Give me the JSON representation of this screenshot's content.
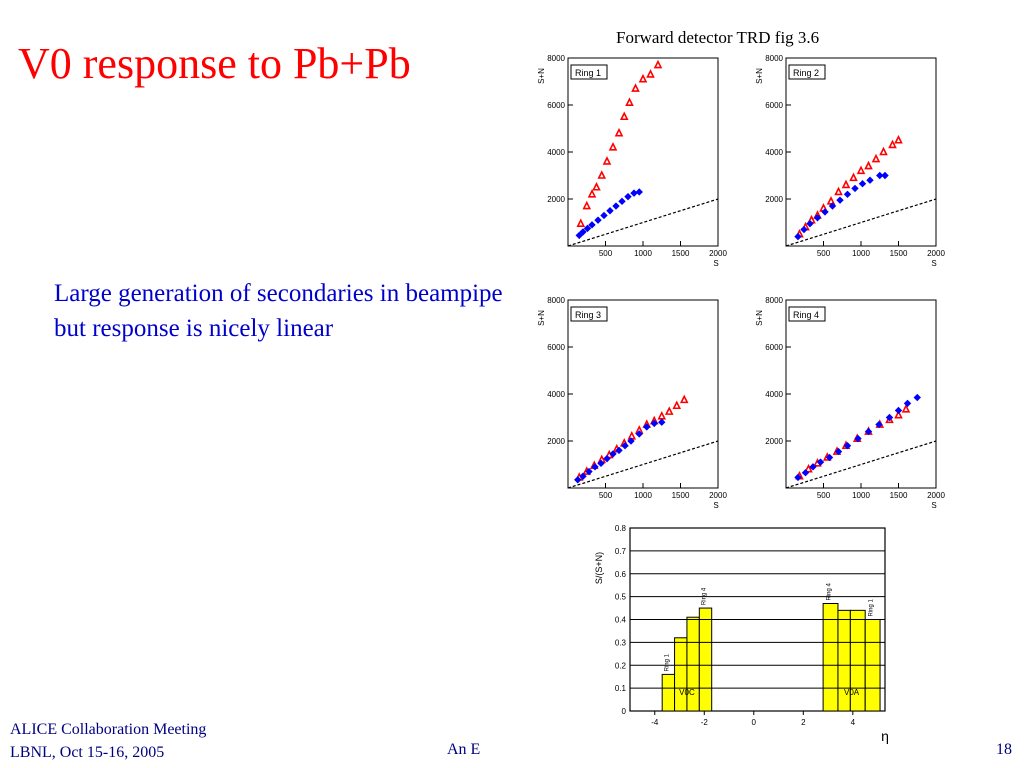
{
  "slide": {
    "title": "V0 response to Pb+Pb",
    "figure_caption": "Forward detector TRD fig 3.6",
    "body_text": "Large generation of secondaries in beampipe but response is nicely linear",
    "footer_line1": "ALICE Collaboration Meeting",
    "footer_line2": "LBNL, Oct 15-16, 2005",
    "footer_middle": "An E",
    "page_number": "18",
    "colors": {
      "title": "#ff0000",
      "body": "#0000cc",
      "footer": "#000080",
      "bar_fill": "#ffff00"
    }
  },
  "chart_data": [
    {
      "type": "scatter",
      "label": "Ring 1",
      "xlabel": "S",
      "ylabel": "S+N",
      "xlim": [
        0,
        2000
      ],
      "ylim": [
        0,
        8000
      ],
      "xticks": [
        500,
        1000,
        1500,
        2000
      ],
      "yticks": [
        2000,
        4000,
        6000,
        8000
      ],
      "series": [
        {
          "color": "#ff0000",
          "marker": "triangle",
          "points": [
            [
              170,
              950
            ],
            [
              250,
              1700
            ],
            [
              320,
              2200
            ],
            [
              380,
              2500
            ],
            [
              450,
              3000
            ],
            [
              520,
              3600
            ],
            [
              600,
              4200
            ],
            [
              680,
              4800
            ],
            [
              750,
              5500
            ],
            [
              820,
              6100
            ],
            [
              900,
              6700
            ],
            [
              1000,
              7100
            ],
            [
              1100,
              7300
            ],
            [
              1200,
              7700
            ]
          ]
        },
        {
          "color": "#0000ff",
          "marker": "diamond",
          "points": [
            [
              150,
              450
            ],
            [
              200,
              600
            ],
            [
              260,
              750
            ],
            [
              320,
              900
            ],
            [
              400,
              1100
            ],
            [
              480,
              1300
            ],
            [
              560,
              1500
            ],
            [
              640,
              1700
            ],
            [
              720,
              1900
            ],
            [
              800,
              2100
            ],
            [
              880,
              2250
            ],
            [
              950,
              2300
            ]
          ]
        },
        {
          "color": "#000000",
          "marker": "dash-line",
          "points": [
            [
              0,
              0
            ],
            [
              2000,
              2000
            ]
          ]
        }
      ]
    },
    {
      "type": "scatter",
      "label": "Ring 2",
      "xlabel": "S",
      "ylabel": "S+N",
      "xlim": [
        0,
        2000
      ],
      "ylim": [
        0,
        8000
      ],
      "xticks": [
        500,
        1000,
        1500,
        2000
      ],
      "yticks": [
        2000,
        4000,
        6000,
        8000
      ],
      "series": [
        {
          "color": "#ff0000",
          "marker": "triangle",
          "points": [
            [
              180,
              500
            ],
            [
              260,
              800
            ],
            [
              340,
              1100
            ],
            [
              420,
              1300
            ],
            [
              500,
              1600
            ],
            [
              600,
              1900
            ],
            [
              700,
              2300
            ],
            [
              800,
              2600
            ],
            [
              900,
              2900
            ],
            [
              1000,
              3200
            ],
            [
              1100,
              3400
            ],
            [
              1200,
              3700
            ],
            [
              1300,
              4000
            ],
            [
              1420,
              4300
            ],
            [
              1500,
              4500
            ]
          ]
        },
        {
          "color": "#0000ff",
          "marker": "diamond",
          "points": [
            [
              160,
              400
            ],
            [
              240,
              700
            ],
            [
              320,
              950
            ],
            [
              420,
              1200
            ],
            [
              520,
              1450
            ],
            [
              620,
              1700
            ],
            [
              720,
              1950
            ],
            [
              820,
              2200
            ],
            [
              920,
              2450
            ],
            [
              1020,
              2650
            ],
            [
              1120,
              2800
            ],
            [
              1250,
              3000
            ],
            [
              1320,
              3000
            ]
          ]
        },
        {
          "color": "#000000",
          "marker": "dash-line",
          "points": [
            [
              0,
              0
            ],
            [
              2000,
              2000
            ]
          ]
        }
      ]
    },
    {
      "type": "scatter",
      "label": "Ring 3",
      "xlabel": "S",
      "ylabel": "S+N",
      "xlim": [
        0,
        2000
      ],
      "ylim": [
        0,
        8000
      ],
      "xticks": [
        500,
        1000,
        1500,
        2000
      ],
      "yticks": [
        2000,
        4000,
        6000,
        8000
      ],
      "series": [
        {
          "color": "#ff0000",
          "marker": "triangle",
          "points": [
            [
              150,
              450
            ],
            [
              250,
              700
            ],
            [
              350,
              950
            ],
            [
              450,
              1200
            ],
            [
              550,
              1400
            ],
            [
              650,
              1650
            ],
            [
              750,
              1900
            ],
            [
              850,
              2200
            ],
            [
              950,
              2450
            ],
            [
              1050,
              2700
            ],
            [
              1150,
              2850
            ],
            [
              1250,
              3050
            ],
            [
              1350,
              3250
            ],
            [
              1450,
              3500
            ],
            [
              1550,
              3750
            ]
          ]
        },
        {
          "color": "#0000ff",
          "marker": "diamond",
          "points": [
            [
              130,
              350
            ],
            [
              200,
              500
            ],
            [
              280,
              700
            ],
            [
              360,
              900
            ],
            [
              440,
              1050
            ],
            [
              520,
              1250
            ],
            [
              600,
              1450
            ],
            [
              680,
              1600
            ],
            [
              760,
              1800
            ],
            [
              840,
              2000
            ],
            [
              950,
              2300
            ],
            [
              1050,
              2600
            ],
            [
              1150,
              2750
            ],
            [
              1250,
              2800
            ]
          ]
        },
        {
          "color": "#000000",
          "marker": "dash-line",
          "points": [
            [
              0,
              0
            ],
            [
              2000,
              2000
            ]
          ]
        }
      ]
    },
    {
      "type": "scatter",
      "label": "Ring 4",
      "xlabel": "S",
      "ylabel": "S+N",
      "xlim": [
        0,
        2000
      ],
      "ylim": [
        0,
        8000
      ],
      "xticks": [
        500,
        1000,
        1500,
        2000
      ],
      "yticks": [
        2000,
        4000,
        6000,
        8000
      ],
      "series": [
        {
          "color": "#ff0000",
          "marker": "triangle",
          "points": [
            [
              180,
              500
            ],
            [
              300,
              800
            ],
            [
              420,
              1050
            ],
            [
              550,
              1300
            ],
            [
              680,
              1550
            ],
            [
              800,
              1800
            ],
            [
              950,
              2100
            ],
            [
              1100,
              2400
            ],
            [
              1250,
              2700
            ],
            [
              1380,
              2900
            ],
            [
              1500,
              3100
            ],
            [
              1600,
              3350
            ]
          ]
        },
        {
          "color": "#0000ff",
          "marker": "diamond",
          "points": [
            [
              160,
              450
            ],
            [
              260,
              650
            ],
            [
              360,
              900
            ],
            [
              460,
              1100
            ],
            [
              580,
              1300
            ],
            [
              700,
              1550
            ],
            [
              820,
              1800
            ],
            [
              960,
              2100
            ],
            [
              1100,
              2400
            ],
            [
              1240,
              2700
            ],
            [
              1380,
              3000
            ],
            [
              1500,
              3300
            ],
            [
              1620,
              3600
            ],
            [
              1750,
              3850
            ]
          ]
        },
        {
          "color": "#000000",
          "marker": "dash-line",
          "points": [
            [
              0,
              0
            ],
            [
              2000,
              2000
            ]
          ]
        }
      ]
    },
    {
      "type": "bar",
      "title": "",
      "xlabel": "η",
      "ylabel": "S/(S+N)",
      "xlim": [
        -5,
        5.3
      ],
      "ylim": [
        0,
        0.8
      ],
      "xticks": [
        -4,
        -2,
        0,
        2,
        4
      ],
      "yticks": [
        0,
        0.1,
        0.2,
        0.3,
        0.4,
        0.5,
        0.6,
        0.7,
        0.8
      ],
      "grid": "horizontal",
      "groups": [
        {
          "name": "V0C",
          "bins": [
            {
              "x0": -3.7,
              "x1": -3.2,
              "value": 0.16,
              "label": "Ring 1"
            },
            {
              "x0": -3.2,
              "x1": -2.7,
              "value": 0.32,
              "label": ""
            },
            {
              "x0": -2.7,
              "x1": -2.2,
              "value": 0.41,
              "label": ""
            },
            {
              "x0": -2.2,
              "x1": -1.7,
              "value": 0.45,
              "label": "Ring 4"
            }
          ]
        },
        {
          "name": "V0A",
          "bins": [
            {
              "x0": 2.8,
              "x1": 3.4,
              "value": 0.47,
              "label": "Ring 4"
            },
            {
              "x0": 3.4,
              "x1": 3.9,
              "value": 0.44,
              "label": ""
            },
            {
              "x0": 3.9,
              "x1": 4.5,
              "value": 0.44,
              "label": ""
            },
            {
              "x0": 4.5,
              "x1": 5.1,
              "value": 0.4,
              "label": "Ring 1"
            }
          ]
        }
      ]
    }
  ]
}
